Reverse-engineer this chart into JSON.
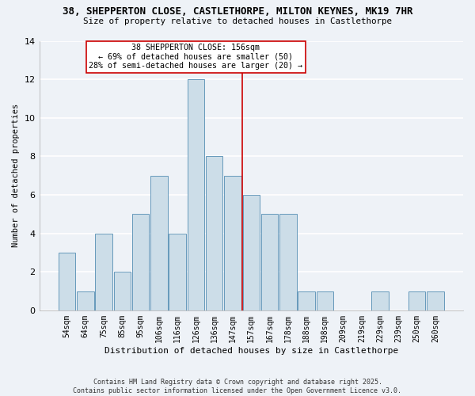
{
  "title_line1": "38, SHEPPERTON CLOSE, CASTLETHORPE, MILTON KEYNES, MK19 7HR",
  "title_line2": "Size of property relative to detached houses in Castlethorpe",
  "xlabel": "Distribution of detached houses by size in Castlethorpe",
  "ylabel": "Number of detached properties",
  "bar_labels": [
    "54sqm",
    "64sqm",
    "75sqm",
    "85sqm",
    "95sqm",
    "106sqm",
    "116sqm",
    "126sqm",
    "136sqm",
    "147sqm",
    "157sqm",
    "167sqm",
    "178sqm",
    "188sqm",
    "198sqm",
    "209sqm",
    "219sqm",
    "229sqm",
    "239sqm",
    "250sqm",
    "260sqm"
  ],
  "bar_heights": [
    3,
    1,
    4,
    2,
    5,
    7,
    4,
    12,
    8,
    7,
    6,
    5,
    5,
    1,
    1,
    0,
    0,
    1,
    0,
    1,
    1
  ],
  "bar_color": "#ccdde8",
  "bar_edgecolor": "#6699bb",
  "vline_color": "#cc0000",
  "vline_x_idx": 10,
  "annotation_text": "38 SHEPPERTON CLOSE: 156sqm\n← 69% of detached houses are smaller (50)\n28% of semi-detached houses are larger (20) →",
  "annotation_box_edgecolor": "#cc0000",
  "annotation_box_facecolor": "#ffffff",
  "ylim": [
    0,
    14
  ],
  "yticks": [
    0,
    2,
    4,
    6,
    8,
    10,
    12,
    14
  ],
  "footer_line1": "Contains HM Land Registry data © Crown copyright and database right 2025.",
  "footer_line2": "Contains public sector information licensed under the Open Government Licence v3.0.",
  "background_color": "#eef2f7",
  "grid_color": "#ffffff"
}
